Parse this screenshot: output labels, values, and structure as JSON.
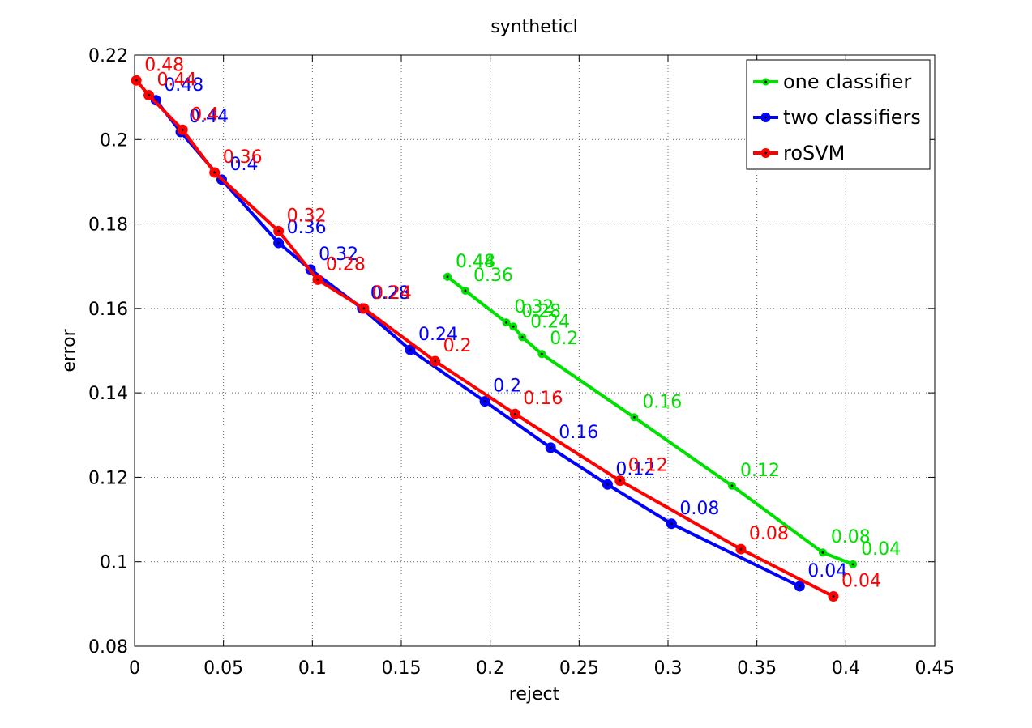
{
  "chart_data": {
    "type": "line",
    "title": "syntheticl",
    "xlabel": "reject",
    "ylabel": "error",
    "xlim": [
      0,
      0.45
    ],
    "ylim": [
      0.08,
      0.22
    ],
    "xticks": [
      0,
      0.05,
      0.1,
      0.15,
      0.2,
      0.25,
      0.3,
      0.35,
      0.4,
      0.45
    ],
    "xtick_labels": [
      "0",
      "0.05",
      "0.1",
      "0.15",
      "0.2",
      "0.25",
      "0.3",
      "0.35",
      "0.4",
      "0.45"
    ],
    "yticks": [
      0.08,
      0.1,
      0.12,
      0.14,
      0.16,
      0.18,
      0.2,
      0.22
    ],
    "ytick_labels": [
      "0.08",
      "0.1",
      "0.12",
      "0.14",
      "0.16",
      "0.18",
      "0.2",
      "0.22"
    ],
    "grid": true,
    "legend_position": "top-right",
    "series": [
      {
        "name": "one classifier",
        "color": "#00e000",
        "marker": "dot",
        "points": [
          {
            "x": 0.176,
            "y": 0.1675,
            "label": "0.48"
          },
          {
            "x": 0.176,
            "y": 0.1675,
            "label": "0.44"
          },
          {
            "x": 0.186,
            "y": 0.1642,
            "label": "0.36"
          },
          {
            "x": 0.209,
            "y": 0.1567,
            "label": "0.32"
          },
          {
            "x": 0.213,
            "y": 0.1557,
            "label": "0.28"
          },
          {
            "x": 0.218,
            "y": 0.1532,
            "label": "0.24"
          },
          {
            "x": 0.229,
            "y": 0.1492,
            "label": "0.2"
          },
          {
            "x": 0.281,
            "y": 0.1342,
            "label": "0.16"
          },
          {
            "x": 0.336,
            "y": 0.118,
            "label": "0.12"
          },
          {
            "x": 0.387,
            "y": 0.1022,
            "label": "0.08"
          },
          {
            "x": 0.404,
            "y": 0.0994,
            "label": "0.04"
          }
        ]
      },
      {
        "name": "two classifiers",
        "color": "#0000ff",
        "marker": "circle",
        "points": [
          {
            "x": 0.012,
            "y": 0.2093,
            "label": "0.48"
          },
          {
            "x": 0.026,
            "y": 0.2018,
            "label": "0.44"
          },
          {
            "x": 0.049,
            "y": 0.1905,
            "label": "0.4"
          },
          {
            "x": 0.081,
            "y": 0.1755,
            "label": "0.36"
          },
          {
            "x": 0.099,
            "y": 0.1692,
            "label": "0.32"
          },
          {
            "x": 0.128,
            "y": 0.16,
            "label": "0.28"
          },
          {
            "x": 0.155,
            "y": 0.1502,
            "label": "0.24"
          },
          {
            "x": 0.197,
            "y": 0.138,
            "label": "0.2"
          },
          {
            "x": 0.234,
            "y": 0.127,
            "label": "0.16"
          },
          {
            "x": 0.266,
            "y": 0.1183,
            "label": "0.12"
          },
          {
            "x": 0.302,
            "y": 0.109,
            "label": "0.08"
          },
          {
            "x": 0.374,
            "y": 0.0942,
            "label": "0.04"
          }
        ]
      },
      {
        "name": "roSVM",
        "color": "#ff0000",
        "marker": "circle",
        "points": [
          {
            "x": 0.001,
            "y": 0.214,
            "label": "0.48"
          },
          {
            "x": 0.008,
            "y": 0.2105,
            "label": "0.44"
          },
          {
            "x": 0.027,
            "y": 0.2023,
            "label": "0.4"
          },
          {
            "x": 0.045,
            "y": 0.1922,
            "label": "0.36"
          },
          {
            "x": 0.081,
            "y": 0.1783,
            "label": "0.32"
          },
          {
            "x": 0.103,
            "y": 0.1668,
            "label": "0.28"
          },
          {
            "x": 0.129,
            "y": 0.16,
            "label": "0.24"
          },
          {
            "x": 0.169,
            "y": 0.1475,
            "label": "0.2"
          },
          {
            "x": 0.214,
            "y": 0.135,
            "label": "0.16"
          },
          {
            "x": 0.273,
            "y": 0.1192,
            "label": "0.12"
          },
          {
            "x": 0.341,
            "y": 0.103,
            "label": "0.08"
          },
          {
            "x": 0.393,
            "y": 0.0918,
            "label": "0.04"
          }
        ]
      }
    ]
  }
}
